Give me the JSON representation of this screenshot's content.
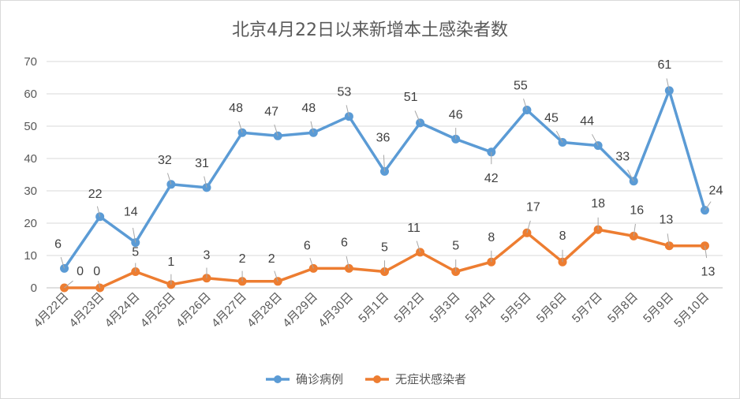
{
  "chart_data": {
    "type": "line",
    "title": "北京4月22日以来新增本土感染者数",
    "categories": [
      "4月22日",
      "4月23日",
      "4月24日",
      "4月25日",
      "4月26日",
      "4月27日",
      "4月28日",
      "4月29日",
      "4月30日",
      "5月1日",
      "5月2日",
      "5月3日",
      "5月4日",
      "5月5日",
      "5月6日",
      "5月7日",
      "5月8日",
      "5月9日",
      "5月10日"
    ],
    "series": [
      {
        "name": "确诊病例",
        "color": "#5b9bd5",
        "values": [
          6,
          22,
          14,
          32,
          31,
          48,
          47,
          48,
          53,
          36,
          51,
          46,
          42,
          55,
          45,
          44,
          33,
          61,
          24
        ]
      },
      {
        "name": "无症状感染者",
        "color": "#ed7d31",
        "values": [
          0,
          0,
          5,
          1,
          3,
          2,
          2,
          6,
          6,
          5,
          11,
          5,
          8,
          17,
          8,
          18,
          16,
          13,
          13
        ]
      }
    ],
    "ylim": [
      0,
      70
    ],
    "yticks": [
      0,
      10,
      20,
      30,
      40,
      50,
      60,
      70
    ],
    "grid": true,
    "legend": "bottom"
  }
}
